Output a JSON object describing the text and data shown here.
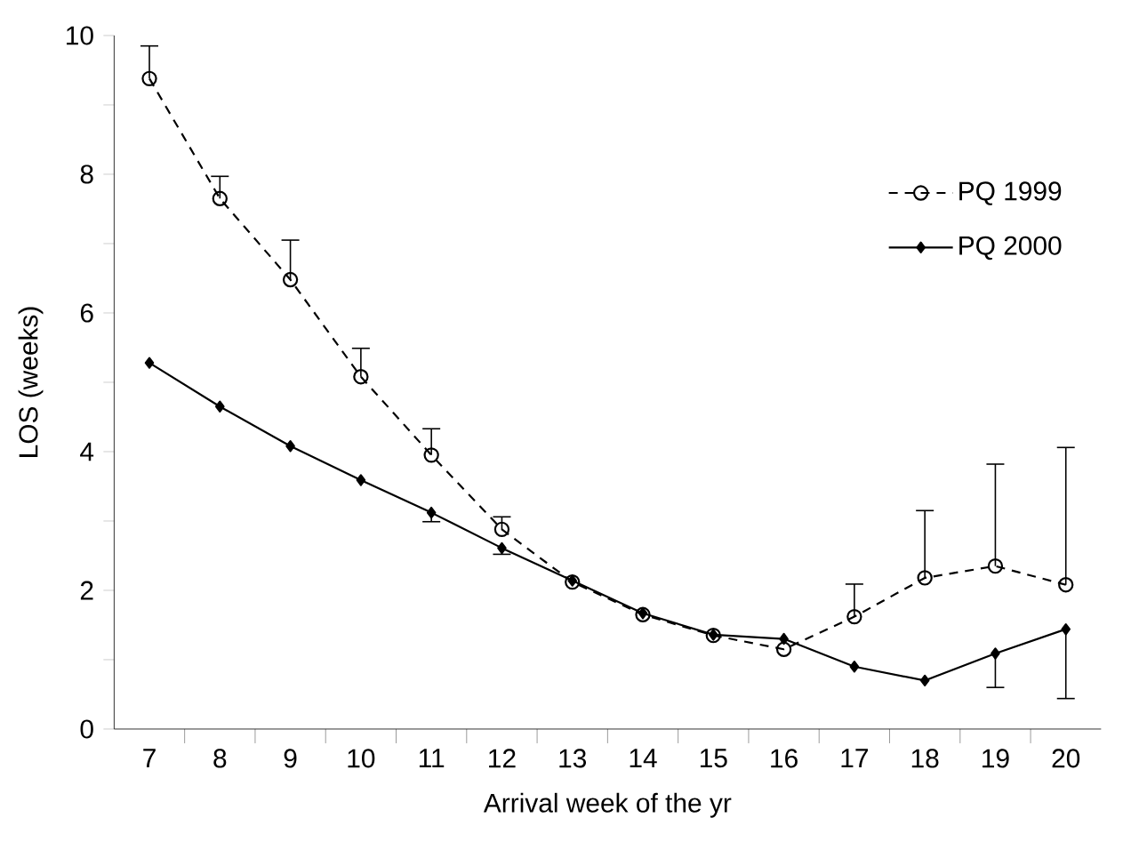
{
  "chart_data": {
    "type": "line",
    "xlabel": "Arrival week of the yr",
    "ylabel": "LOS (weeks)",
    "categories": [
      "7",
      "8",
      "9",
      "10",
      "11",
      "12",
      "13",
      "14",
      "15",
      "16",
      "17",
      "18",
      "19",
      "20"
    ],
    "ylim": [
      0,
      10
    ],
    "yticks": [
      0,
      {
        "value": 1,
        "label": null
      },
      2,
      {
        "value": 3,
        "label": null
      },
      4,
      {
        "value": 5,
        "label": null
      },
      6,
      {
        "value": 7,
        "label": null
      },
      8,
      {
        "value": 9,
        "label": null
      },
      10
    ],
    "legend": "top right",
    "grid": false,
    "series": [
      {
        "name": "PQ 1999",
        "color": "#000000",
        "marker": "circle",
        "line_style": "dashed",
        "values": [
          9.38,
          7.65,
          6.48,
          5.08,
          3.95,
          2.88,
          2.12,
          1.65,
          1.35,
          1.15,
          1.62,
          2.18,
          2.35,
          2.08
        ],
        "errors": [
          [
            9.38,
            9.85
          ],
          [
            7.65,
            7.97
          ],
          [
            6.48,
            7.05
          ],
          [
            5.08,
            5.49
          ],
          [
            3.95,
            4.33
          ],
          [
            2.88,
            3.06
          ],
          null,
          null,
          null,
          null,
          [
            1.62,
            2.09
          ],
          [
            2.18,
            3.15
          ],
          [
            2.35,
            3.82
          ],
          [
            2.08,
            4.06
          ]
        ]
      },
      {
        "name": "PQ 2000",
        "color": "#000000",
        "marker": "diamond",
        "line_style": "solid",
        "values": [
          5.28,
          4.65,
          4.08,
          3.59,
          3.12,
          2.61,
          2.14,
          1.67,
          1.36,
          1.3,
          0.9,
          0.7,
          1.09,
          1.44
        ],
        "errors": [
          null,
          null,
          null,
          null,
          [
            2.99,
            3.12
          ],
          [
            2.52,
            2.61
          ],
          null,
          null,
          null,
          null,
          null,
          null,
          [
            0.6,
            1.09
          ],
          [
            0.44,
            1.44
          ]
        ]
      }
    ]
  }
}
